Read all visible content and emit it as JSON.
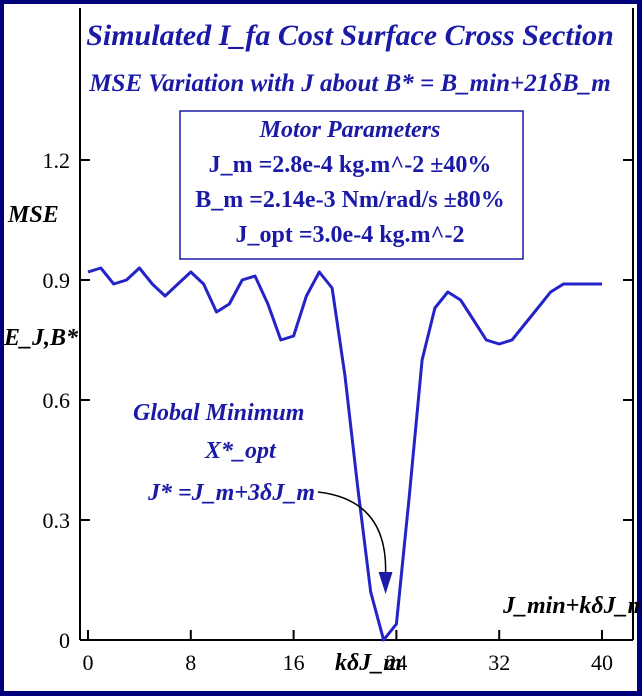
{
  "colors": {
    "frame": "#00007a",
    "ink": "#1a1aa6",
    "line": "#2323c8",
    "axis": "#000000"
  },
  "chart_data": {
    "type": "line",
    "title": "Simulated I_fa Cost Surface Cross Section",
    "subtitle": "MSE Variation with J about B* = B_min+21δB_m",
    "ylabel_lines": [
      "MSE",
      "E_J,B*"
    ],
    "xlabel": "kδJ_m",
    "corner_label": "J_min+kδJ_m",
    "xlim": [
      0,
      42
    ],
    "ylim": [
      0,
      1.26
    ],
    "x_ticks": [
      0,
      8,
      16,
      24,
      32,
      40
    ],
    "x_tick_labels": [
      "0",
      "8",
      "16",
      "24",
      "32",
      "40"
    ],
    "y_ticks": [
      0,
      0.3,
      0.6,
      0.9,
      1.2
    ],
    "y_tick_labels": [
      "0",
      "0.3",
      "0.6",
      "0.9",
      "1.2"
    ],
    "grid": false,
    "series": [
      {
        "x": [
          0,
          1,
          2,
          3,
          4,
          5,
          6,
          7,
          8,
          9,
          10,
          11,
          12,
          13,
          14,
          15,
          16,
          17,
          18,
          19,
          20,
          21,
          22,
          23,
          24,
          25,
          26,
          27,
          28,
          29,
          30,
          31,
          32,
          33,
          34,
          35,
          36,
          37,
          38,
          39,
          40
        ],
        "y": [
          0.92,
          0.93,
          0.89,
          0.9,
          0.93,
          0.89,
          0.86,
          0.89,
          0.92,
          0.89,
          0.82,
          0.84,
          0.9,
          0.91,
          0.84,
          0.75,
          0.76,
          0.86,
          0.92,
          0.88,
          0.66,
          0.38,
          0.12,
          0.0,
          0.04,
          0.36,
          0.7,
          0.83,
          0.87,
          0.85,
          0.8,
          0.75,
          0.74,
          0.75,
          0.79,
          0.83,
          0.87,
          0.89,
          0.89,
          0.89,
          0.89
        ]
      }
    ],
    "annotation": {
      "lines": [
        "Global Minimum",
        "X*_opt",
        "J* =J_m+3δJ_m"
      ],
      "points_to_x": 23,
      "points_to_y": 0.12
    },
    "params_box": {
      "heading": "Motor Parameters",
      "lines": [
        "J_m =2.8e-4 kg.m^-2 ±40%",
        "B_m =2.14e-3 Nm/rad/s ±80%",
        "J_opt =3.0e-4 kg.m^-2"
      ]
    }
  }
}
